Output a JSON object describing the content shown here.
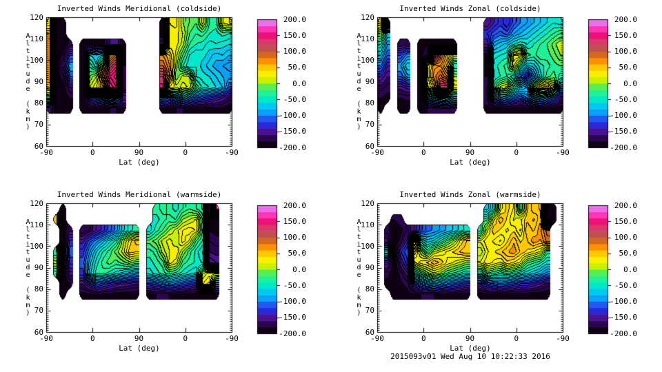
{
  "footer": {
    "text": "2015093v01 Wed Aug 10 10:22:33 2016"
  },
  "axes": {
    "x_label": "Lat (deg)",
    "x_tick_labels": [
      "-90",
      "0",
      "90",
      "0",
      "-90"
    ],
    "y_label": "Altitude (km)",
    "y_tick_labels": [
      "120",
      "110",
      "100",
      "90",
      "80",
      "70",
      "60"
    ],
    "y_range": [
      60,
      120
    ]
  },
  "colorbar": {
    "min": -200.0,
    "max": 200.0,
    "tick_labels": [
      "200.0",
      "150.0",
      "100.0",
      "50.0",
      "0.0",
      "-50.0",
      "-100.0",
      "-150.0",
      "-200.0"
    ],
    "n_segments": 20,
    "palette_bottom_to_top": [
      "#100013",
      "#2b0650",
      "#4a1290",
      "#2a28d8",
      "#2258f0",
      "#08a0f8",
      "#00c8f0",
      "#00e8cc",
      "#20f098",
      "#55ee55",
      "#c8f000",
      "#f8f000",
      "#ffc800",
      "#ff9000",
      "#d2691e",
      "#c05050",
      "#d8386a",
      "#ee1178",
      "#ff35b5",
      "#ee6fee"
    ]
  },
  "chart_data": [
    {
      "type": "heatmap",
      "title": "Inverted Winds Meridional (coldside)",
      "xlabel": "Lat (deg)",
      "ylabel": "Altitude (km)",
      "x_ticks": [
        -90,
        0,
        90,
        0,
        -90
      ],
      "value_range": [
        -200,
        200
      ],
      "grid_alt_top": 120,
      "grid_alt_step": 5,
      "grid_n_cols": 28,
      "note": "wind values estimated from contour colors; null = no data (white)",
      "grid": [
        [
          20,
          -195,
          -195,
          null,
          null,
          null,
          null,
          null,
          null,
          null,
          null,
          null,
          null,
          null,
          null,
          null,
          null,
          -190,
          30,
          35,
          0,
          -10,
          -20,
          15,
          -30,
          -35,
          20,
          30
        ],
        [
          60,
          -195,
          -195,
          null,
          null,
          null,
          null,
          null,
          null,
          null,
          null,
          null,
          null,
          null,
          null,
          null,
          null,
          -190,
          25,
          25,
          10,
          -20,
          -30,
          -25,
          -40,
          -45,
          -35,
          -40
        ],
        [
          70,
          -195,
          -195,
          -175,
          null,
          -190,
          -180,
          -185,
          -185,
          -160,
          -150,
          -185,
          null,
          null,
          null,
          null,
          null,
          -160,
          20,
          25,
          5,
          -30,
          -40,
          -45,
          -55,
          -50,
          -55,
          -60
        ],
        [
          65,
          -195,
          -180,
          -120,
          null,
          -190,
          -60,
          -70,
          -60,
          60,
          90,
          -185,
          null,
          null,
          null,
          null,
          null,
          70,
          50,
          15,
          -20,
          -50,
          -60,
          -55,
          -65,
          -75,
          -70,
          -80
        ],
        [
          70,
          -195,
          -150,
          -90,
          null,
          -185,
          -30,
          -60,
          20,
          110,
          140,
          -180,
          null,
          null,
          null,
          null,
          null,
          90,
          60,
          5,
          -40,
          -60,
          -50,
          -65,
          -75,
          -85,
          -90,
          -95
        ],
        [
          65,
          -195,
          -170,
          -110,
          null,
          -190,
          -10,
          10,
          90,
          150,
          165,
          -175,
          null,
          null,
          null,
          null,
          null,
          130,
          70,
          -10,
          15,
          10,
          -50,
          -55,
          -60,
          -70,
          -80,
          -85
        ],
        [
          55,
          -195,
          -190,
          -160,
          null,
          -185,
          10,
          30,
          60,
          130,
          150,
          -180,
          null,
          null,
          null,
          null,
          null,
          145,
          30,
          15,
          25,
          18,
          -20,
          -45,
          -50,
          -60,
          -70,
          -110
        ],
        [
          -20,
          -195,
          -190,
          -180,
          null,
          -180,
          -120,
          -100,
          -80,
          -60,
          -50,
          -140,
          null,
          null,
          null,
          null,
          null,
          -90,
          -110,
          -90,
          -70,
          -90,
          -110,
          -120,
          -130,
          -140,
          -150,
          -165
        ],
        [
          -150,
          -195,
          -195,
          -190,
          null,
          -190,
          -185,
          -185,
          -185,
          -180,
          -180,
          -185,
          null,
          null,
          null,
          null,
          null,
          -185,
          -185,
          -180,
          -180,
          -185,
          -190,
          -190,
          -190,
          -185,
          -185,
          -190
        ]
      ]
    },
    {
      "type": "heatmap",
      "title": "Inverted Winds Zonal (coldside)",
      "xlabel": "Lat (deg)",
      "ylabel": "Altitude (km)",
      "x_ticks": [
        -90,
        0,
        90,
        0,
        -90
      ],
      "value_range": [
        -200,
        200
      ],
      "grid_alt_top": 120,
      "grid_alt_step": 5,
      "grid_n_cols": 28,
      "note": "wind values estimated from contour colors; null = no data (white)",
      "grid": [
        [
          50,
          -195,
          null,
          null,
          null,
          null,
          null,
          null,
          null,
          null,
          null,
          null,
          null,
          null,
          null,
          null,
          -160,
          -140,
          -125,
          -140,
          -115,
          -100,
          -90,
          -80,
          -70,
          -60,
          -50,
          -55
        ],
        [
          0,
          -60,
          null,
          null,
          null,
          null,
          null,
          null,
          null,
          null,
          null,
          null,
          null,
          null,
          null,
          null,
          -130,
          -115,
          -105,
          -115,
          -90,
          -80,
          -70,
          -60,
          -50,
          -40,
          -30,
          -20
        ],
        [
          -40,
          -90,
          null,
          -170,
          -165,
          null,
          -192,
          -190,
          -190,
          -188,
          -186,
          -184,
          null,
          null,
          null,
          null,
          -150,
          -85,
          -75,
          -65,
          -50,
          -40,
          -50,
          -40,
          -30,
          -20,
          -5,
          10
        ],
        [
          -70,
          -110,
          null,
          -120,
          -95,
          null,
          -192,
          -150,
          170,
          95,
          55,
          15,
          null,
          null,
          null,
          null,
          -185,
          -55,
          -50,
          -45,
          40,
          45,
          -25,
          -35,
          -20,
          -25,
          -15,
          0
        ],
        [
          -100,
          -140,
          null,
          -90,
          -60,
          null,
          -188,
          30,
          65,
          70,
          35,
          -40,
          null,
          null,
          null,
          null,
          -185,
          -45,
          -35,
          -25,
          25,
          -30,
          -75,
          -65,
          -45,
          -35,
          -25,
          -20
        ],
        [
          -140,
          -160,
          null,
          -110,
          -85,
          null,
          -188,
          25,
          75,
          95,
          70,
          0,
          null,
          null,
          null,
          null,
          -180,
          -50,
          -40,
          -30,
          -50,
          -105,
          -140,
          -95,
          -55,
          -25,
          -15,
          -35
        ],
        [
          -165,
          -175,
          null,
          -155,
          -145,
          null,
          -182,
          15,
          45,
          135,
          140,
          25,
          null,
          null,
          null,
          null,
          -175,
          -30,
          15,
          25,
          -20,
          -55,
          -70,
          20,
          50,
          60,
          30,
          -75
        ],
        [
          -180,
          -185,
          null,
          -180,
          -178,
          null,
          -186,
          -80,
          -60,
          -50,
          -45,
          -70,
          null,
          null,
          null,
          null,
          -170,
          -95,
          -75,
          -85,
          -105,
          -120,
          -100,
          -80,
          -70,
          -85,
          -105,
          -155
        ],
        [
          -185,
          null,
          null,
          -188,
          -186,
          null,
          -190,
          -180,
          -178,
          -175,
          -172,
          -178,
          null,
          null,
          null,
          null,
          -186,
          -182,
          -180,
          -184,
          -186,
          -188,
          -190,
          -185,
          -180,
          -185,
          -190,
          -190
        ]
      ]
    },
    {
      "type": "heatmap",
      "title": "Inverted Winds Meridional (warmside)",
      "xlabel": "Lat (deg)",
      "ylabel": "Altitude (km)",
      "x_ticks": [
        -90,
        0,
        90,
        0,
        -90
      ],
      "value_range": [
        -200,
        200
      ],
      "grid_alt_top": 120,
      "grid_alt_step": 5,
      "grid_n_cols": 28,
      "note": "wind values estimated from contour colors; null = no data (white)",
      "grid": [
        [
          null,
          null,
          -195,
          null,
          null,
          null,
          null,
          null,
          null,
          null,
          null,
          null,
          null,
          null,
          null,
          null,
          -35,
          -25,
          -35,
          -45,
          -30,
          -20,
          -30,
          -42,
          -185,
          160,
          null,
          null
        ],
        [
          null,
          55,
          -195,
          null,
          null,
          null,
          null,
          null,
          null,
          null,
          null,
          null,
          null,
          null,
          null,
          null,
          -45,
          -35,
          -25,
          -30,
          0,
          10,
          22,
          -22,
          -185,
          -190,
          null,
          null
        ],
        [
          null,
          null,
          -195,
          -165,
          null,
          -180,
          -170,
          -150,
          -135,
          -115,
          -95,
          -65,
          -45,
          -35,
          null,
          -55,
          -35,
          -20,
          0,
          15,
          30,
          38,
          28,
          -32,
          -180,
          -185,
          null,
          null
        ],
        [
          null,
          null,
          -195,
          -125,
          null,
          -145,
          -115,
          -95,
          -75,
          -55,
          -35,
          5,
          35,
          55,
          null,
          -15,
          -5,
          15,
          25,
          10,
          35,
          18,
          -22,
          -42,
          -170,
          -175,
          null,
          null
        ],
        [
          null,
          -30,
          -195,
          -115,
          null,
          -125,
          -90,
          -60,
          -40,
          -25,
          -5,
          15,
          45,
          40,
          null,
          -35,
          -25,
          5,
          20,
          30,
          0,
          -25,
          -45,
          -62,
          -160,
          -165,
          null,
          null
        ],
        [
          null,
          5,
          -195,
          -125,
          null,
          -115,
          -75,
          -45,
          -25,
          -15,
          -25,
          -15,
          -5,
          -15,
          null,
          -45,
          -35,
          -25,
          25,
          15,
          -25,
          -35,
          -42,
          -52,
          -140,
          -150,
          null,
          null
        ],
        [
          null,
          -40,
          -195,
          -155,
          null,
          -125,
          -65,
          -35,
          -35,
          -45,
          -55,
          -65,
          -75,
          -85,
          null,
          -55,
          -45,
          -35,
          -25,
          -35,
          -45,
          -55,
          -62,
          10,
          25,
          25,
          null,
          null
        ],
        [
          null,
          null,
          -195,
          -180,
          null,
          -160,
          -135,
          -115,
          -125,
          -135,
          -145,
          -150,
          -155,
          -160,
          null,
          -125,
          -115,
          -105,
          -95,
          -105,
          -115,
          -125,
          -135,
          30,
          45,
          -80,
          null,
          null
        ],
        [
          null,
          null,
          -195,
          null,
          null,
          -185,
          -185,
          -180,
          -185,
          -185,
          -190,
          -190,
          -190,
          -190,
          null,
          -185,
          -180,
          -180,
          -180,
          -185,
          -185,
          -190,
          -190,
          -185,
          -180,
          -185,
          null,
          null
        ]
      ]
    },
    {
      "type": "heatmap",
      "title": "Inverted Winds Zonal (warmside)",
      "xlabel": "Lat (deg)",
      "ylabel": "Altitude (km)",
      "x_ticks": [
        -90,
        0,
        90,
        0,
        -90
      ],
      "value_range": [
        -200,
        200
      ],
      "grid_alt_top": 120,
      "grid_alt_step": 5,
      "grid_n_cols": 28,
      "note": "wind values estimated from contour colors; null = no data (white)",
      "grid": [
        [
          null,
          null,
          null,
          null,
          null,
          null,
          null,
          null,
          null,
          null,
          null,
          null,
          null,
          null,
          null,
          null,
          -75,
          -45,
          25,
          45,
          28,
          -28,
          38,
          58,
          48,
          -185,
          -190,
          null
        ],
        [
          null,
          null,
          -180,
          -170,
          null,
          null,
          null,
          null,
          null,
          null,
          null,
          null,
          null,
          null,
          null,
          null,
          -25,
          28,
          58,
          38,
          18,
          28,
          48,
          38,
          58,
          -185,
          -190,
          null
        ],
        [
          null,
          -175,
          -192,
          -185,
          -168,
          -150,
          -125,
          -105,
          -98,
          -88,
          -78,
          -68,
          -55,
          -45,
          null,
          -35,
          18,
          48,
          38,
          28,
          38,
          18,
          58,
          48,
          68,
          95,
          null,
          null
        ],
        [
          null,
          -155,
          -195,
          -175,
          -132,
          25,
          -45,
          -65,
          -58,
          -38,
          -18,
          2,
          32,
          52,
          null,
          22,
          38,
          28,
          18,
          38,
          58,
          38,
          48,
          68,
          58,
          85,
          null,
          null
        ],
        [
          null,
          -50,
          -195,
          -130,
          -112,
          55,
          5,
          -25,
          12,
          22,
          32,
          42,
          52,
          58,
          null,
          2,
          28,
          38,
          48,
          58,
          68,
          48,
          38,
          28,
          18,
          -25,
          null,
          null
        ],
        [
          null,
          -145,
          -195,
          -150,
          -122,
          15,
          35,
          42,
          58,
          48,
          28,
          18,
          8,
          -2,
          null,
          22,
          38,
          28,
          18,
          38,
          28,
          18,
          -18,
          -28,
          -38,
          -55,
          null,
          null
        ],
        [
          null,
          -175,
          -192,
          -175,
          -152,
          -45,
          -25,
          -5,
          8,
          -2,
          -22,
          -32,
          -42,
          -52,
          null,
          -42,
          -22,
          -28,
          -38,
          -28,
          -38,
          -48,
          -58,
          -68,
          -78,
          -95,
          null,
          null
        ],
        [
          null,
          -185,
          -188,
          -182,
          -176,
          -125,
          -105,
          -92,
          -82,
          -92,
          -102,
          -112,
          -122,
          -132,
          null,
          -138,
          -122,
          -112,
          -102,
          -112,
          -122,
          -132,
          -132,
          -142,
          -152,
          -165,
          null,
          null
        ],
        [
          null,
          null,
          -190,
          -188,
          -186,
          -185,
          -180,
          -180,
          -180,
          -185,
          -185,
          -185,
          -190,
          -190,
          null,
          -190,
          -185,
          -185,
          -185,
          -190,
          -190,
          -190,
          -190,
          -190,
          -190,
          -190,
          null,
          null
        ]
      ]
    }
  ]
}
